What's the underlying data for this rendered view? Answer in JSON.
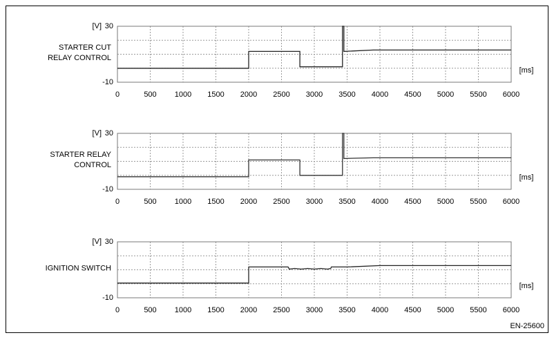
{
  "chart_data": [
    {
      "type": "line",
      "ylabel": [
        "STARTER CUT",
        "RELAY CONTROL"
      ],
      "yunit": "[V]",
      "xlabel": "[ms]",
      "x": [
        0,
        2000,
        2000,
        2780,
        2780,
        3430,
        3430,
        3450,
        3450,
        3900,
        6000
      ],
      "values": [
        0,
        0,
        12,
        12,
        1,
        1,
        30,
        30,
        12,
        13,
        13
      ],
      "color": "#222222",
      "xlim": [
        0,
        6000
      ],
      "xticks": [
        0,
        500,
        1000,
        1500,
        2000,
        2500,
        3000,
        3500,
        4000,
        4500,
        5000,
        5500,
        6000
      ],
      "ylim": [
        -10,
        30
      ],
      "yticks": [
        30,
        -10
      ],
      "ygrid": [
        20,
        10,
        0
      ],
      "grid": true
    },
    {
      "type": "line",
      "ylabel": [
        "STARTER RELAY",
        "CONTROL"
      ],
      "yunit": "[V]",
      "xlabel": "[ms]",
      "x": [
        0,
        2000,
        2000,
        2780,
        2780,
        3430,
        3430,
        3450,
        3450,
        3900,
        6000
      ],
      "values": [
        -1,
        -1,
        11,
        11,
        0,
        0,
        30,
        30,
        12,
        12.5,
        12.5
      ],
      "color": "#333333",
      "xlim": [
        0,
        6000
      ],
      "xticks": [
        0,
        500,
        1000,
        1500,
        2000,
        2500,
        3000,
        3500,
        4000,
        4500,
        5000,
        5500,
        6000
      ],
      "ylim": [
        -10,
        30
      ],
      "yticks": [
        30,
        -10
      ],
      "ygrid": [
        20,
        10,
        0
      ],
      "grid": true
    },
    {
      "type": "line",
      "ylabel": [
        "IGNITION SWITCH"
      ],
      "yunit": "[V]",
      "xlabel": "[ms]",
      "x": [
        0,
        1000,
        2000,
        2000,
        2600,
        2620,
        2700,
        2800,
        2900,
        3000,
        3100,
        3200,
        3250,
        3260,
        3500,
        4000,
        6000
      ],
      "values": [
        0.5,
        0.5,
        0.5,
        12,
        12,
        10.5,
        11,
        10.5,
        11,
        10.5,
        11,
        10.5,
        11,
        12,
        12,
        13,
        13
      ],
      "color": "#222222",
      "xlim": [
        0,
        6000
      ],
      "xticks": [
        0,
        500,
        1000,
        1500,
        2000,
        2500,
        3000,
        3500,
        4000,
        4500,
        5000,
        5500,
        6000
      ],
      "ylim": [
        -10,
        30
      ],
      "yticks": [
        30,
        -10
      ],
      "ygrid": [
        20,
        10,
        0
      ],
      "grid": true
    }
  ],
  "footer": "EN-25600"
}
